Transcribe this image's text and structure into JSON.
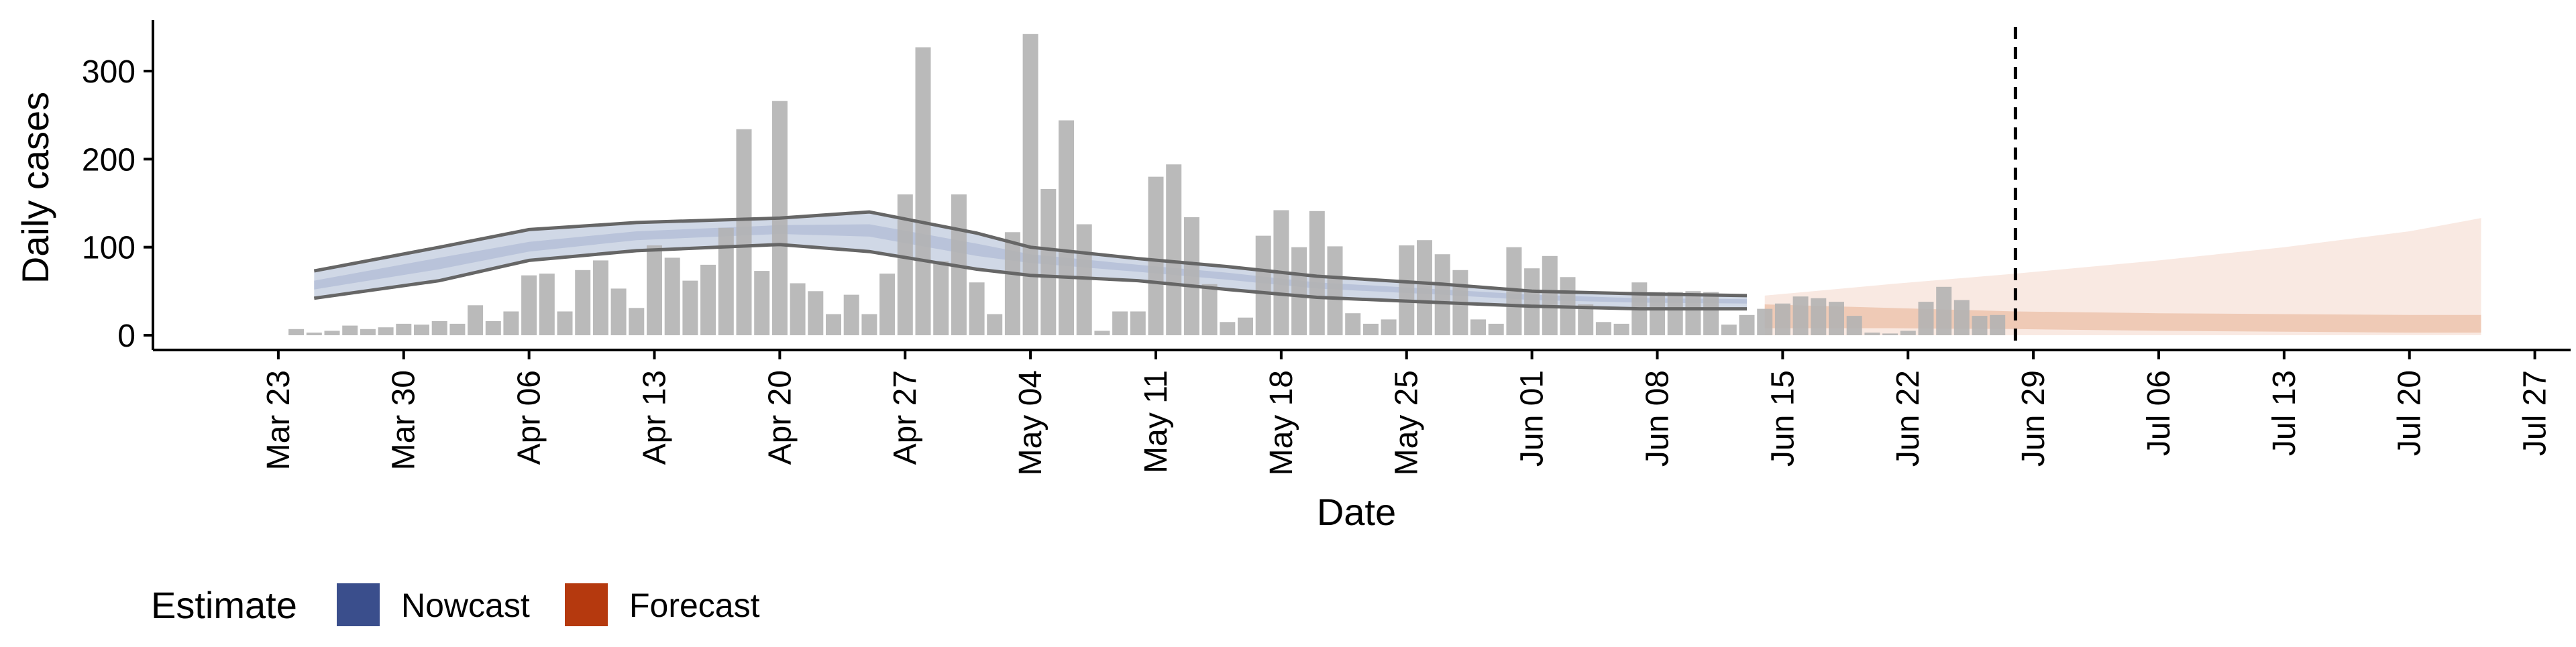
{
  "chart_data": {
    "type": "bar",
    "xlabel": "Date",
    "ylabel": "Daily cases",
    "ylim": [
      0,
      350
    ],
    "y_ticks": [
      0,
      100,
      200,
      300
    ],
    "x_tick_labels": [
      "Mar 23",
      "Mar 30",
      "Apr 06",
      "Apr 13",
      "Apr 20",
      "Apr 27",
      "May 04",
      "May 11",
      "May 18",
      "May 25",
      "Jun 01",
      "Jun 08",
      "Jun 15",
      "Jun 22",
      "Jun 29",
      "Jul 06",
      "Jul 13",
      "Jul 20",
      "Jul 27"
    ],
    "x_tick_dates": [
      "2020-03-23",
      "2020-03-30",
      "2020-04-06",
      "2020-04-13",
      "2020-04-20",
      "2020-04-27",
      "2020-05-04",
      "2020-05-11",
      "2020-05-18",
      "2020-05-25",
      "2020-06-01",
      "2020-06-08",
      "2020-06-15",
      "2020-06-22",
      "2020-06-29",
      "2020-07-06",
      "2020-07-13",
      "2020-07-20",
      "2020-07-27"
    ],
    "x_range": [
      "2020-03-16",
      "2020-07-29"
    ],
    "grid": false,
    "legend": {
      "title": "Estimate",
      "position": "bottom-left",
      "entries": [
        {
          "label": "Nowcast",
          "color": "#3a4e8c"
        },
        {
          "label": "Forecast",
          "color": "#b5390e"
        }
      ]
    },
    "colors": {
      "bars": "#b3b3b3",
      "nowcast_outer": "#d0d8e6",
      "nowcast_inner": "#b9c3da",
      "forecast_outer": "#f9e9e2",
      "forecast_inner": "#efcab6",
      "nowcast_lines": "#666666",
      "forecast_date_line": "#000000"
    },
    "forecast_date": "2020-06-28",
    "reported_cases": {
      "start_date": "2020-03-24",
      "values": [
        7,
        3,
        5,
        11,
        7,
        9,
        13,
        12,
        16,
        13,
        34,
        16,
        27,
        68,
        70,
        27,
        74,
        85,
        53,
        31,
        102,
        88,
        62,
        80,
        122,
        234,
        73,
        266,
        59,
        50,
        24,
        46,
        24,
        70,
        160,
        327,
        84,
        160,
        60,
        24,
        117,
        342,
        166,
        244,
        126,
        5,
        27,
        27,
        180,
        194,
        134,
        58,
        15,
        20,
        113,
        142,
        100,
        141,
        101,
        25,
        13,
        18,
        102,
        108,
        92,
        74,
        18,
        13,
        100,
        76,
        90,
        66,
        35,
        15,
        13,
        60,
        49,
        49,
        50,
        49,
        12,
        23,
        30,
        36,
        44,
        42,
        38,
        22,
        3,
        2,
        5,
        38,
        55,
        40,
        22,
        23
      ]
    },
    "nowcast": {
      "start_date": "2020-03-25",
      "end_date": "2020-06-13",
      "outer_band": {
        "dates": [
          "2020-03-25",
          "2020-04-01",
          "2020-04-06",
          "2020-04-12",
          "2020-04-20",
          "2020-04-25",
          "2020-05-01",
          "2020-05-04",
          "2020-05-10",
          "2020-05-15",
          "2020-05-20",
          "2020-05-27",
          "2020-06-01",
          "2020-06-07",
          "2020-06-13"
        ],
        "lower": [
          42,
          62,
          85,
          96,
          103,
          95,
          75,
          68,
          62,
          52,
          43,
          37,
          33,
          30,
          30
        ],
        "upper": [
          73,
          100,
          120,
          128,
          133,
          140,
          116,
          100,
          87,
          78,
          67,
          58,
          50,
          47,
          45
        ]
      },
      "inner_band": {
        "dates": [
          "2020-03-25",
          "2020-04-01",
          "2020-04-06",
          "2020-04-12",
          "2020-04-20",
          "2020-04-25",
          "2020-05-01",
          "2020-05-04",
          "2020-05-10",
          "2020-05-15",
          "2020-05-20",
          "2020-05-27",
          "2020-06-01",
          "2020-06-07",
          "2020-06-13"
        ],
        "lower": [
          52,
          75,
          95,
          108,
          115,
          112,
          90,
          82,
          72,
          63,
          53,
          46,
          40,
          37,
          36
        ],
        "upper": [
          62,
          88,
          106,
          118,
          125,
          126,
          104,
          92,
          80,
          71,
          60,
          52,
          46,
          42,
          41
        ]
      }
    },
    "forecast": {
      "start_date": "2020-06-14",
      "end_date": "2020-07-24",
      "outer_band": {
        "dates": [
          "2020-06-14",
          "2020-06-21",
          "2020-06-28",
          "2020-07-06",
          "2020-07-13",
          "2020-07-20",
          "2020-07-24"
        ],
        "lower": [
          0,
          0,
          0,
          0,
          0,
          0,
          0
        ],
        "upper": [
          45,
          58,
          70,
          85,
          100,
          118,
          133
        ]
      },
      "inner_band": {
        "dates": [
          "2020-06-14",
          "2020-06-21",
          "2020-06-28",
          "2020-07-06",
          "2020-07-13",
          "2020-07-20",
          "2020-07-24"
        ],
        "lower": [
          8,
          8,
          7,
          5,
          4,
          3,
          3
        ],
        "upper": [
          35,
          31,
          27,
          25,
          24,
          23,
          23
        ]
      }
    }
  }
}
